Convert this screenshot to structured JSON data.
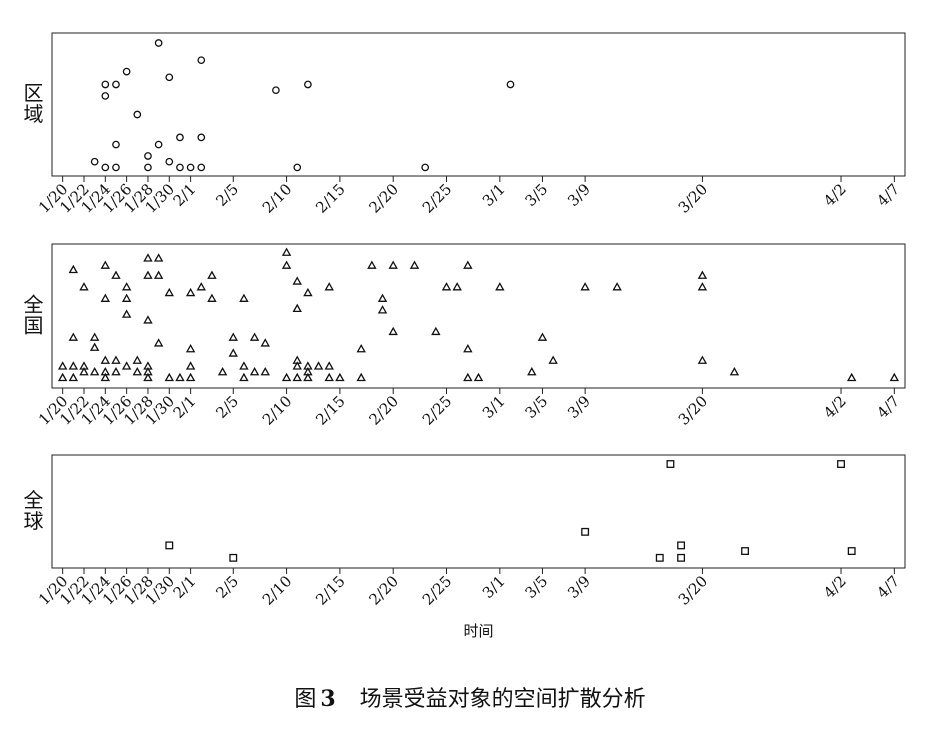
{
  "chart_data": [
    {
      "type": "scatter",
      "ylabel": "区域",
      "marker": "circle",
      "xlim": [
        "1/19",
        "4/8"
      ],
      "ylim": [
        0,
        1
      ],
      "xticks": [
        "1/20",
        "1/22",
        "1/24",
        "1/26",
        "1/28",
        "1/30",
        "2/1",
        "2/5",
        "2/10",
        "2/15",
        "2/20",
        "2/25",
        "3/1",
        "3/5",
        "3/9",
        "3/20",
        "4/2",
        "4/7"
      ],
      "x": [
        "1/29",
        "1/26",
        "1/24",
        "1/24",
        "1/25",
        "1/30",
        "2/2",
        "1/27",
        "2/9",
        "2/12",
        "3/2",
        "1/23",
        "1/24",
        "1/25",
        "1/25",
        "1/28",
        "1/28",
        "1/29",
        "1/30",
        "1/31",
        "1/31",
        "2/1",
        "2/2",
        "2/2",
        "2/11",
        "2/23"
      ],
      "y": [
        0.93,
        0.73,
        0.64,
        0.56,
        0.64,
        0.69,
        0.81,
        0.43,
        0.6,
        0.64,
        0.64,
        0.1,
        0.06,
        0.06,
        0.22,
        0.14,
        0.06,
        0.22,
        0.1,
        0.27,
        0.06,
        0.06,
        0.06,
        0.27,
        0.06,
        0.06
      ]
    },
    {
      "type": "scatter",
      "ylabel": "全国",
      "marker": "triangle",
      "xlim": [
        "1/19",
        "4/8"
      ],
      "ylim": [
        0,
        1
      ],
      "xticks": [
        "1/20",
        "1/22",
        "1/24",
        "1/26",
        "1/28",
        "1/30",
        "2/1",
        "2/5",
        "2/10",
        "2/15",
        "2/20",
        "2/25",
        "3/1",
        "3/5",
        "3/9",
        "3/20",
        "4/2",
        "4/7"
      ],
      "x": [
        "2/10",
        "2/10",
        "1/21",
        "1/24",
        "1/28",
        "1/29",
        "1/28",
        "1/29",
        "1/25",
        "1/26",
        "1/22",
        "1/24",
        "1/26",
        "1/30",
        "2/1",
        "2/2",
        "2/3",
        "2/3",
        "2/6",
        "2/11",
        "2/11",
        "2/12",
        "2/14",
        "1/26",
        "1/28",
        "2/18",
        "2/20",
        "2/22",
        "2/27",
        "2/25",
        "2/26",
        "3/1",
        "3/9",
        "3/12",
        "3/20",
        "3/20",
        "2/19",
        "2/19",
        "2/20",
        "2/24",
        "1/21",
        "1/23",
        "1/23",
        "2/5",
        "2/7",
        "2/8",
        "2/5",
        "1/29",
        "2/1",
        "2/17",
        "2/27",
        "3/5",
        "3/6",
        "3/20",
        "1/20",
        "1/20",
        "1/21",
        "1/21",
        "1/22",
        "1/22",
        "1/23",
        "1/24",
        "1/24",
        "1/24",
        "1/25",
        "1/25",
        "1/26",
        "1/27",
        "1/27",
        "1/28",
        "1/28",
        "1/28",
        "1/30",
        "1/31",
        "2/1",
        "2/1",
        "2/4",
        "2/6",
        "2/6",
        "2/7",
        "2/8",
        "2/10",
        "2/11",
        "2/11",
        "2/11",
        "2/12",
        "2/12",
        "2/12",
        "2/13",
        "2/14",
        "2/14",
        "2/15",
        "2/17",
        "2/27",
        "2/28",
        "3/4",
        "3/23",
        "4/3",
        "4/7"
      ],
      "y": [
        0.94,
        0.85,
        0.82,
        0.85,
        0.9,
        0.9,
        0.78,
        0.78,
        0.78,
        0.7,
        0.7,
        0.62,
        0.62,
        0.66,
        0.66,
        0.7,
        0.78,
        0.62,
        0.62,
        0.74,
        0.55,
        0.66,
        0.7,
        0.51,
        0.47,
        0.85,
        0.85,
        0.85,
        0.85,
        0.7,
        0.7,
        0.7,
        0.7,
        0.7,
        0.78,
        0.7,
        0.62,
        0.54,
        0.39,
        0.39,
        0.35,
        0.35,
        0.28,
        0.35,
        0.35,
        0.31,
        0.24,
        0.31,
        0.27,
        0.27,
        0.27,
        0.35,
        0.19,
        0.19,
        0.15,
        0.07,
        0.15,
        0.07,
        0.15,
        0.11,
        0.11,
        0.19,
        0.11,
        0.07,
        0.19,
        0.11,
        0.15,
        0.19,
        0.11,
        0.15,
        0.11,
        0.07,
        0.07,
        0.07,
        0.15,
        0.07,
        0.11,
        0.15,
        0.07,
        0.11,
        0.11,
        0.07,
        0.19,
        0.15,
        0.07,
        0.15,
        0.11,
        0.07,
        0.15,
        0.15,
        0.07,
        0.07,
        0.07,
        0.07,
        0.07,
        0.11,
        0.11,
        0.07,
        0.07
      ]
    },
    {
      "type": "scatter",
      "ylabel": "全球",
      "xlabel": "时间",
      "marker": "square",
      "xlim": [
        "1/19",
        "4/8"
      ],
      "ylim": [
        0,
        1
      ],
      "xticks": [
        "1/20",
        "1/22",
        "1/24",
        "1/26",
        "1/28",
        "1/30",
        "2/1",
        "2/5",
        "2/10",
        "2/15",
        "2/20",
        "2/25",
        "3/1",
        "3/5",
        "3/9",
        "3/20",
        "4/2",
        "4/7"
      ],
      "x": [
        "3/17",
        "4/2",
        "3/9",
        "1/30",
        "2/5",
        "3/16",
        "3/18",
        "3/18",
        "3/24",
        "4/3"
      ],
      "y": [
        0.92,
        0.92,
        0.32,
        0.2,
        0.09,
        0.09,
        0.2,
        0.09,
        0.15,
        0.15
      ]
    }
  ],
  "caption": {
    "prefix": "图",
    "number": "3",
    "text": "场景受益对象的空间扩散分析"
  }
}
